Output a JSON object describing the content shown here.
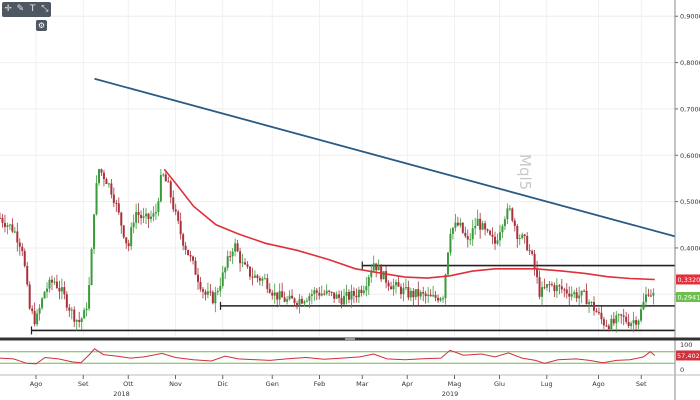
{
  "toolbar": {
    "icons": [
      "crosshair-icon",
      "pencil-icon",
      "text-icon",
      "measure-icon"
    ],
    "settings_icon": "settings-icon"
  },
  "watermark": "Mql5",
  "colors": {
    "price_up": "#3a9a3a",
    "price_down": "#a8323c",
    "ma": "#e0303a",
    "trendline": "#2b5a85",
    "support": "#222222",
    "osc": "#d0303a",
    "osc_level": "#6bbf4a"
  },
  "chart_data": {
    "type": "candlestick",
    "yticks": [
      0.9,
      0.8,
      0.7,
      0.6,
      0.5,
      0.4,
      0.3
    ],
    "ytick_labels": [
      "0,9000",
      "0,8000",
      "0,7000",
      "0,6000",
      "0,5000",
      "0,4000",
      "0,3000"
    ],
    "ylim": [
      0.21,
      0.935
    ],
    "xlim": [
      0,
      15
    ],
    "xticks": [
      {
        "label": "Ago",
        "x": 0.8
      },
      {
        "label": "Set",
        "x": 1.85
      },
      {
        "label": "Ott",
        "x": 2.85
      },
      {
        "label": "Nov",
        "x": 3.9
      },
      {
        "label": "Dic",
        "x": 4.95
      },
      {
        "label": "Gen",
        "x": 6.05
      },
      {
        "label": "Feb",
        "x": 7.1
      },
      {
        "label": "Mar",
        "x": 8.05
      },
      {
        "label": "Apr",
        "x": 9.05
      },
      {
        "label": "Mag",
        "x": 10.1
      },
      {
        "label": "Giu",
        "x": 11.1
      },
      {
        "label": "Lug",
        "x": 12.15
      },
      {
        "label": "Ago",
        "x": 13.3
      },
      {
        "label": "Set",
        "x": 14.25
      }
    ],
    "year_labels": [
      {
        "label": "2018",
        "x": 2.7
      },
      {
        "label": "2019",
        "x": 10.0
      }
    ],
    "price_path": [
      [
        0,
        0.465
      ],
      [
        0.3,
        0.44
      ],
      [
        0.5,
        0.4
      ],
      [
        0.65,
        0.27
      ],
      [
        0.8,
        0.24
      ],
      [
        1.0,
        0.31
      ],
      [
        1.2,
        0.33
      ],
      [
        1.4,
        0.3
      ],
      [
        1.6,
        0.26
      ],
      [
        1.75,
        0.24
      ],
      [
        1.9,
        0.26
      ],
      [
        2.0,
        0.33
      ],
      [
        2.1,
        0.5
      ],
      [
        2.2,
        0.57
      ],
      [
        2.35,
        0.55
      ],
      [
        2.5,
        0.52
      ],
      [
        2.7,
        0.45
      ],
      [
        2.85,
        0.4
      ],
      [
        3.0,
        0.48
      ],
      [
        3.2,
        0.46
      ],
      [
        3.45,
        0.47
      ],
      [
        3.6,
        0.56
      ],
      [
        3.75,
        0.53
      ],
      [
        3.9,
        0.47
      ],
      [
        4.05,
        0.42
      ],
      [
        4.3,
        0.36
      ],
      [
        4.55,
        0.3
      ],
      [
        4.75,
        0.29
      ],
      [
        4.95,
        0.34
      ],
      [
        5.2,
        0.41
      ],
      [
        5.4,
        0.36
      ],
      [
        5.6,
        0.34
      ],
      [
        5.9,
        0.33
      ],
      [
        6.1,
        0.3
      ],
      [
        6.4,
        0.285
      ],
      [
        6.7,
        0.29
      ],
      [
        7.0,
        0.305
      ],
      [
        7.3,
        0.3
      ],
      [
        7.6,
        0.29
      ],
      [
        7.9,
        0.3
      ],
      [
        8.1,
        0.32
      ],
      [
        8.3,
        0.37
      ],
      [
        8.5,
        0.34
      ],
      [
        8.7,
        0.32
      ],
      [
        8.9,
        0.31
      ],
      [
        9.1,
        0.3
      ],
      [
        9.3,
        0.3
      ],
      [
        9.6,
        0.29
      ],
      [
        9.85,
        0.3
      ],
      [
        10.0,
        0.44
      ],
      [
        10.2,
        0.45
      ],
      [
        10.4,
        0.41
      ],
      [
        10.6,
        0.46
      ],
      [
        10.8,
        0.43
      ],
      [
        11.0,
        0.41
      ],
      [
        11.2,
        0.47
      ],
      [
        11.35,
        0.48
      ],
      [
        11.5,
        0.43
      ],
      [
        11.7,
        0.41
      ],
      [
        11.85,
        0.37
      ],
      [
        12.0,
        0.3
      ],
      [
        12.2,
        0.32
      ],
      [
        12.5,
        0.31
      ],
      [
        12.8,
        0.3
      ],
      [
        13.0,
        0.295
      ],
      [
        13.2,
        0.27
      ],
      [
        13.4,
        0.24
      ],
      [
        13.6,
        0.235
      ],
      [
        13.8,
        0.25
      ],
      [
        14.0,
        0.24
      ],
      [
        14.2,
        0.25
      ],
      [
        14.4,
        0.31
      ],
      [
        14.55,
        0.2941
      ]
    ],
    "ma_path": [
      [
        3.65,
        0.57
      ],
      [
        3.9,
        0.54
      ],
      [
        4.3,
        0.49
      ],
      [
        4.8,
        0.45
      ],
      [
        5.3,
        0.43
      ],
      [
        5.9,
        0.41
      ],
      [
        6.6,
        0.395
      ],
      [
        7.3,
        0.375
      ],
      [
        7.9,
        0.355
      ],
      [
        8.5,
        0.345
      ],
      [
        9.0,
        0.337
      ],
      [
        9.5,
        0.335
      ],
      [
        10.0,
        0.34
      ],
      [
        10.5,
        0.35
      ],
      [
        11.0,
        0.355
      ],
      [
        11.4,
        0.355
      ],
      [
        11.9,
        0.355
      ],
      [
        12.5,
        0.35
      ],
      [
        13.0,
        0.345
      ],
      [
        13.5,
        0.338
      ],
      [
        14.0,
        0.334
      ],
      [
        14.55,
        0.332
      ]
    ],
    "trendline": [
      [
        2.1,
        0.765
      ],
      [
        15.0,
        0.425
      ]
    ],
    "horizontal_levels": [
      {
        "y": 0.275,
        "x0": 4.9,
        "x1": 15.0
      },
      {
        "y": 0.222,
        "x0": 0.7,
        "x1": 15.0
      },
      {
        "y": 0.362,
        "x0": 8.05,
        "x1": 15.0
      }
    ],
    "price_labels": [
      {
        "label": "0,3320",
        "value": 0.332,
        "color": "#e0303a"
      },
      {
        "label": "0,2941",
        "value": 0.2941,
        "color": "#6bbf4a"
      }
    ],
    "oscillator": {
      "ylim": [
        0,
        100
      ],
      "ytick_labels": [
        "100",
        "0"
      ],
      "upper_level": 70,
      "lower_level": 30,
      "current_label": "57,4025",
      "path": [
        [
          0,
          48
        ],
        [
          0.3,
          45
        ],
        [
          0.6,
          30
        ],
        [
          0.8,
          28
        ],
        [
          1.0,
          50
        ],
        [
          1.3,
          45
        ],
        [
          1.6,
          35
        ],
        [
          1.8,
          32
        ],
        [
          2.0,
          62
        ],
        [
          2.1,
          80
        ],
        [
          2.3,
          60
        ],
        [
          2.6,
          55
        ],
        [
          2.9,
          48
        ],
        [
          3.2,
          52
        ],
        [
          3.6,
          64
        ],
        [
          3.9,
          50
        ],
        [
          4.3,
          42
        ],
        [
          4.7,
          38
        ],
        [
          5.0,
          55
        ],
        [
          5.3,
          45
        ],
        [
          5.7,
          42
        ],
        [
          6.0,
          40
        ],
        [
          6.4,
          46
        ],
        [
          6.8,
          50
        ],
        [
          7.2,
          44
        ],
        [
          7.6,
          48
        ],
        [
          8.0,
          52
        ],
        [
          8.3,
          62
        ],
        [
          8.6,
          45
        ],
        [
          9.0,
          42
        ],
        [
          9.4,
          46
        ],
        [
          9.8,
          48
        ],
        [
          10.0,
          75
        ],
        [
          10.3,
          58
        ],
        [
          10.7,
          62
        ],
        [
          11.0,
          52
        ],
        [
          11.3,
          66
        ],
        [
          11.6,
          48
        ],
        [
          11.9,
          40
        ],
        [
          12.1,
          30
        ],
        [
          12.4,
          42
        ],
        [
          12.8,
          45
        ],
        [
          13.1,
          40
        ],
        [
          13.4,
          32
        ],
        [
          13.7,
          40
        ],
        [
          14.0,
          42
        ],
        [
          14.3,
          52
        ],
        [
          14.45,
          70
        ],
        [
          14.55,
          57
        ]
      ]
    }
  }
}
